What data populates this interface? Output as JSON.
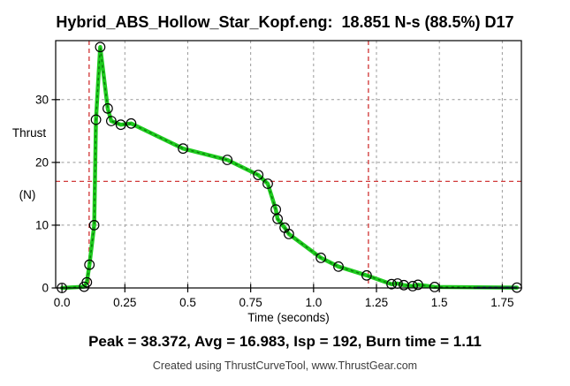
{
  "header": {
    "title": "Hybrid_ABS_Hollow_Star_Kopf.eng:  18.851 N-s (88.5%) D17"
  },
  "stats": {
    "summary": "Peak = 38.372, Avg = 16.983, Isp = 192, Burn time = 1.11",
    "peak": 38.372,
    "avg": 16.983,
    "isp": 192,
    "burn_time": 1.11
  },
  "footer": {
    "credit": "Created using ThrustCurveTool, www.ThrustGear.com"
  },
  "chart_data": {
    "type": "line",
    "title": "Hybrid_ABS_Hollow_Star_Kopf.eng:  18.851 N-s (88.5%) D17",
    "motor_file": "Hybrid_ABS_Hollow_Star_Kopf.eng",
    "total_impulse_label": "18.851 N-s (88.5%) D17",
    "xlabel": "Time (seconds)",
    "ylabel_lines": [
      "Thrust",
      "(N)"
    ],
    "xlim": [
      -0.025,
      1.826
    ],
    "ylim": [
      0,
      39.4
    ],
    "xticks": {
      "values": [
        0,
        0.25,
        0.5,
        0.75,
        1.0,
        1.25,
        1.5,
        1.75
      ],
      "labels": [
        "0.0",
        "0.25",
        "0.5",
        "0.75",
        "1.0",
        "1.25",
        "1.5",
        "1.75"
      ]
    },
    "yticks": {
      "values": [
        0,
        10,
        20,
        30
      ],
      "labels": [
        "0",
        "10",
        "20",
        "30"
      ]
    },
    "grid": true,
    "legend": false,
    "crosshairs": {
      "h_value": 16.983,
      "v_values": [
        0.108,
        1.218
      ]
    },
    "series": [
      {
        "name": "thrust-curve",
        "marker": "open-circle",
        "points": [
          [
            0.0,
            0.0
          ],
          [
            0.088,
            0.2
          ],
          [
            0.099,
            0.9
          ],
          [
            0.109,
            3.7
          ],
          [
            0.128,
            10.0
          ],
          [
            0.135,
            26.8
          ],
          [
            0.152,
            38.372
          ],
          [
            0.182,
            28.6
          ],
          [
            0.196,
            26.6
          ],
          [
            0.234,
            26.0
          ],
          [
            0.275,
            26.2
          ],
          [
            0.481,
            22.2
          ],
          [
            0.657,
            20.4
          ],
          [
            0.78,
            18.0
          ],
          [
            0.818,
            16.6
          ],
          [
            0.85,
            12.5
          ],
          [
            0.857,
            11.0
          ],
          [
            0.885,
            9.6
          ],
          [
            0.902,
            8.6
          ],
          [
            1.029,
            4.8
          ],
          [
            1.099,
            3.4
          ],
          [
            1.211,
            2.0
          ],
          [
            1.31,
            0.6
          ],
          [
            1.334,
            0.7
          ],
          [
            1.359,
            0.45
          ],
          [
            1.394,
            0.3
          ],
          [
            1.415,
            0.5
          ],
          [
            1.481,
            0.15
          ],
          [
            1.808,
            0.05
          ]
        ]
      },
      {
        "name": "delay-element-segment",
        "marker": "none",
        "points": [
          [
            1.636,
            0.05
          ],
          [
            1.808,
            0.05
          ]
        ]
      }
    ],
    "colors": {
      "curve_green": "#1ecb1e",
      "curve_dark_green": "#0a7a0a",
      "marker_outline": "#000000",
      "grid_gray": "#999999",
      "crosshair_red": "#cc2222",
      "frame_black": "#000000",
      "delay_navy": "#1a1f66",
      "background": "#ffffff"
    }
  }
}
